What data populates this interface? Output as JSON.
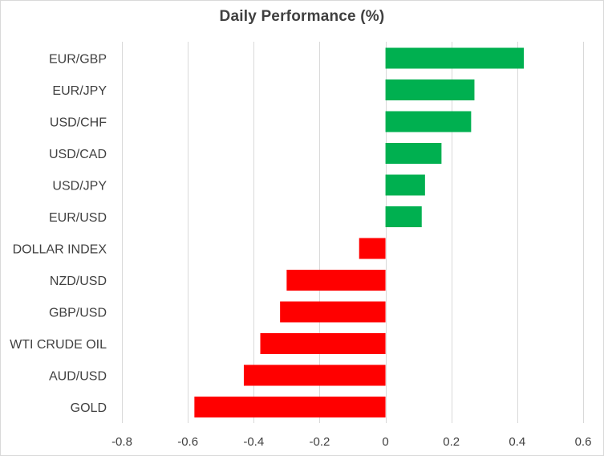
{
  "chart_data": {
    "type": "bar",
    "orientation": "horizontal",
    "title": "Daily Performance (%)",
    "categories": [
      "EUR/GBP",
      "EUR/JPY",
      "USD/CHF",
      "USD/CAD",
      "USD/JPY",
      "EUR/USD",
      "DOLLAR INDEX",
      "NZD/USD",
      "GBP/USD",
      "WTI CRUDE OIL",
      "AUD/USD",
      "GOLD"
    ],
    "values": [
      0.42,
      0.27,
      0.26,
      0.17,
      0.12,
      0.11,
      -0.08,
      -0.3,
      -0.32,
      -0.38,
      -0.43,
      -0.58
    ],
    "xlim": [
      -0.8,
      0.6
    ],
    "xticks": [
      "-0.8",
      "-0.6",
      "-0.4",
      "-0.2",
      "0",
      "0.2",
      "0.4",
      "0.6"
    ],
    "xtick_values": [
      -0.8,
      -0.6,
      -0.4,
      -0.2,
      0,
      0.2,
      0.4,
      0.6
    ],
    "grid": "vertical",
    "colors": {
      "positive": "#00b050",
      "negative": "#ff0000",
      "grid": "#d9d9d9",
      "text": "#404040"
    }
  }
}
